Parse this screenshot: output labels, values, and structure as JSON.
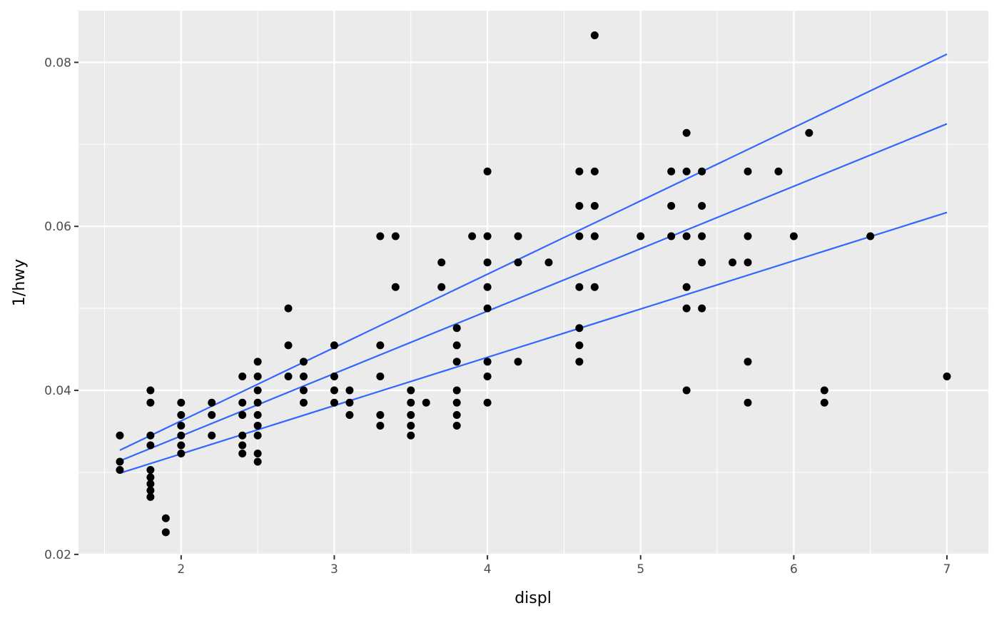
{
  "chart_data": {
    "type": "scatter",
    "title": "",
    "xlabel": "displ",
    "ylabel": "1/hwy",
    "xlim": [
      1.33,
      7.27
    ],
    "ylim": [
      0.0199,
      0.0863
    ],
    "grid": true,
    "x_ticks": [
      2,
      3,
      4,
      5,
      6,
      7
    ],
    "x_tick_labels": [
      "2",
      "3",
      "4",
      "5",
      "6",
      "7"
    ],
    "y_ticks": [
      0.02,
      0.04,
      0.06,
      0.08
    ],
    "y_tick_labels": [
      "0.02",
      "0.04",
      "0.06",
      "0.08"
    ],
    "x_minor_ticks": [
      1.5,
      2.5,
      3.5,
      4.5,
      5.5,
      6.5
    ],
    "y_minor_ticks": [
      0.03,
      0.05,
      0.07
    ],
    "colors": {
      "panel": "#ebebeb",
      "grid": "#ffffff",
      "points": "#000000",
      "lines": "#3366ff"
    },
    "points": [
      [
        1.6,
        0.0345
      ],
      [
        1.6,
        0.0313
      ],
      [
        1.6,
        0.0303
      ],
      [
        1.8,
        0.04
      ],
      [
        1.8,
        0.0385
      ],
      [
        1.8,
        0.0345
      ],
      [
        1.8,
        0.0333
      ],
      [
        1.8,
        0.0303
      ],
      [
        1.8,
        0.0294
      ],
      [
        1.8,
        0.0286
      ],
      [
        1.8,
        0.0278
      ],
      [
        1.8,
        0.027
      ],
      [
        1.9,
        0.0244
      ],
      [
        1.9,
        0.0227
      ],
      [
        2.0,
        0.0385
      ],
      [
        2.0,
        0.037
      ],
      [
        2.0,
        0.0357
      ],
      [
        2.0,
        0.0345
      ],
      [
        2.0,
        0.0333
      ],
      [
        2.0,
        0.0323
      ],
      [
        2.2,
        0.0385
      ],
      [
        2.2,
        0.037
      ],
      [
        2.2,
        0.0345
      ],
      [
        2.4,
        0.0417
      ],
      [
        2.4,
        0.0385
      ],
      [
        2.4,
        0.037
      ],
      [
        2.4,
        0.0345
      ],
      [
        2.4,
        0.0333
      ],
      [
        2.4,
        0.0323
      ],
      [
        2.5,
        0.0435
      ],
      [
        2.5,
        0.0417
      ],
      [
        2.5,
        0.04
      ],
      [
        2.5,
        0.0385
      ],
      [
        2.5,
        0.037
      ],
      [
        2.5,
        0.0357
      ],
      [
        2.5,
        0.0345
      ],
      [
        2.5,
        0.0323
      ],
      [
        2.5,
        0.0313
      ],
      [
        2.7,
        0.05
      ],
      [
        2.7,
        0.0455
      ],
      [
        2.7,
        0.0417
      ],
      [
        2.8,
        0.0435
      ],
      [
        2.8,
        0.0417
      ],
      [
        2.8,
        0.04
      ],
      [
        2.8,
        0.0385
      ],
      [
        3.0,
        0.0455
      ],
      [
        3.0,
        0.0417
      ],
      [
        3.0,
        0.04
      ],
      [
        3.0,
        0.0385
      ],
      [
        3.1,
        0.04
      ],
      [
        3.1,
        0.0385
      ],
      [
        3.1,
        0.037
      ],
      [
        3.3,
        0.0588
      ],
      [
        3.3,
        0.0455
      ],
      [
        3.3,
        0.0417
      ],
      [
        3.3,
        0.037
      ],
      [
        3.3,
        0.0357
      ],
      [
        3.4,
        0.0588
      ],
      [
        3.4,
        0.0526
      ],
      [
        3.5,
        0.04
      ],
      [
        3.5,
        0.0385
      ],
      [
        3.5,
        0.037
      ],
      [
        3.5,
        0.0357
      ],
      [
        3.5,
        0.0345
      ],
      [
        3.6,
        0.0385
      ],
      [
        3.7,
        0.0556
      ],
      [
        3.7,
        0.0526
      ],
      [
        3.8,
        0.0476
      ],
      [
        3.8,
        0.0455
      ],
      [
        3.8,
        0.0435
      ],
      [
        3.8,
        0.04
      ],
      [
        3.8,
        0.0385
      ],
      [
        3.8,
        0.037
      ],
      [
        3.8,
        0.0357
      ],
      [
        3.9,
        0.0588
      ],
      [
        4.0,
        0.0667
      ],
      [
        4.0,
        0.0588
      ],
      [
        4.0,
        0.0556
      ],
      [
        4.0,
        0.0526
      ],
      [
        4.0,
        0.05
      ],
      [
        4.0,
        0.0435
      ],
      [
        4.0,
        0.0417
      ],
      [
        4.0,
        0.0385
      ],
      [
        4.2,
        0.0588
      ],
      [
        4.2,
        0.0556
      ],
      [
        4.2,
        0.0435
      ],
      [
        4.4,
        0.0556
      ],
      [
        4.6,
        0.0667
      ],
      [
        4.6,
        0.0625
      ],
      [
        4.6,
        0.0588
      ],
      [
        4.6,
        0.0526
      ],
      [
        4.6,
        0.0476
      ],
      [
        4.6,
        0.0455
      ],
      [
        4.6,
        0.0435
      ],
      [
        4.7,
        0.0833
      ],
      [
        4.7,
        0.0667
      ],
      [
        4.7,
        0.0625
      ],
      [
        4.7,
        0.0588
      ],
      [
        4.7,
        0.0526
      ],
      [
        5.0,
        0.0588
      ],
      [
        5.2,
        0.0667
      ],
      [
        5.2,
        0.0625
      ],
      [
        5.2,
        0.0588
      ],
      [
        5.3,
        0.0714
      ],
      [
        5.3,
        0.0667
      ],
      [
        5.3,
        0.0588
      ],
      [
        5.3,
        0.0526
      ],
      [
        5.3,
        0.05
      ],
      [
        5.3,
        0.04
      ],
      [
        5.4,
        0.0667
      ],
      [
        5.4,
        0.0625
      ],
      [
        5.4,
        0.0588
      ],
      [
        5.4,
        0.0556
      ],
      [
        5.4,
        0.05
      ],
      [
        5.6,
        0.0556
      ],
      [
        5.7,
        0.0667
      ],
      [
        5.7,
        0.0588
      ],
      [
        5.7,
        0.0556
      ],
      [
        5.7,
        0.0435
      ],
      [
        5.7,
        0.0385
      ],
      [
        5.9,
        0.0667
      ],
      [
        6.0,
        0.0588
      ],
      [
        6.1,
        0.0714
      ],
      [
        6.2,
        0.04
      ],
      [
        6.2,
        0.0385
      ],
      [
        6.5,
        0.0588
      ],
      [
        7.0,
        0.0417
      ]
    ],
    "lines": [
      {
        "x": [
          1.6,
          7.0
        ],
        "y": [
          0.0327,
          0.081
        ]
      },
      {
        "x": [
          1.6,
          7.0
        ],
        "y": [
          0.0314,
          0.0725
        ]
      },
      {
        "x": [
          1.6,
          7.0
        ],
        "y": [
          0.0299,
          0.0617
        ]
      }
    ]
  }
}
